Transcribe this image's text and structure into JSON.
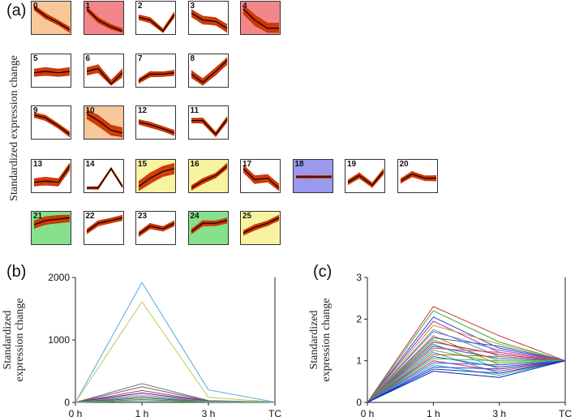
{
  "figure": {
    "panel_a_label": "(a)",
    "panel_b_label": "(b)",
    "panel_c_label": "(c)",
    "panel_a_ylabel": "Standardized expression change"
  },
  "colors": {
    "trace": "#cc3300",
    "centroid": "#000000",
    "orange": "#f8c79a",
    "red": "#f2868a",
    "yellow": "#f7f3a0",
    "green": "#86e08c",
    "blue": "#9999ee"
  },
  "chart_data": [
    {
      "id": "a",
      "type": "line",
      "title": "",
      "ylabel": "Standardized expression change",
      "clusters": [
        {
          "id": "0",
          "highlight": "orange",
          "profile": [
            0.1,
            0.4,
            0.65,
            0.9
          ],
          "spread": 0.1
        },
        {
          "id": "1",
          "highlight": "red",
          "profile": [
            0.15,
            0.55,
            0.8,
            0.95
          ],
          "spread": 0.1
        },
        {
          "id": "2",
          "highlight": "none",
          "profile": [
            0.45,
            0.55,
            0.95,
            0.35
          ],
          "spread": 0.1
        },
        {
          "id": "3",
          "highlight": "none",
          "profile": [
            0.3,
            0.55,
            0.6,
            0.85
          ],
          "spread": 0.15
        },
        {
          "id": "4",
          "highlight": "red",
          "profile": [
            0.15,
            0.55,
            0.85,
            0.85
          ],
          "spread": 0.2
        },
        {
          "id": "5",
          "highlight": "none",
          "profile": [
            0.55,
            0.5,
            0.55,
            0.5
          ],
          "spread": 0.15
        },
        {
          "id": "6",
          "highlight": "none",
          "profile": [
            0.5,
            0.4,
            0.95,
            0.55
          ],
          "spread": 0.15
        },
        {
          "id": "7",
          "highlight": "none",
          "profile": [
            0.85,
            0.6,
            0.6,
            0.55
          ],
          "spread": 0.1
        },
        {
          "id": "8",
          "highlight": "none",
          "profile": [
            0.6,
            0.9,
            0.5,
            0.1
          ],
          "spread": 0.15
        },
        {
          "id": "9",
          "highlight": "none",
          "profile": [
            0.2,
            0.3,
            0.6,
            0.9
          ],
          "spread": 0.1
        },
        {
          "id": "10",
          "highlight": "orange",
          "profile": [
            0.15,
            0.4,
            0.75,
            0.85
          ],
          "spread": 0.2
        },
        {
          "id": "12",
          "highlight": "none",
          "profile": [
            0.45,
            0.55,
            0.7,
            0.85
          ],
          "spread": 0.1
        },
        {
          "id": "11",
          "highlight": "none",
          "profile": [
            0.4,
            0.4,
            0.9,
            0.35
          ],
          "spread": 0.1
        },
        {
          "id": "13",
          "highlight": "none",
          "profile": [
            0.7,
            0.65,
            0.7,
            0.1
          ],
          "spread": 0.15
        },
        {
          "id": "14",
          "highlight": "none",
          "profile": [
            0.9,
            0.9,
            0.2,
            0.85
          ],
          "spread": 0.05
        },
        {
          "id": "15",
          "highlight": "yellow",
          "profile": [
            0.85,
            0.55,
            0.3,
            0.2
          ],
          "spread": 0.2
        },
        {
          "id": "16",
          "highlight": "yellow",
          "profile": [
            0.9,
            0.65,
            0.45,
            0.1
          ],
          "spread": 0.1
        },
        {
          "id": "17",
          "highlight": "none",
          "profile": [
            0.2,
            0.6,
            0.55,
            0.9
          ],
          "spread": 0.15
        },
        {
          "id": "18",
          "highlight": "blue",
          "profile": [
            0.5,
            0.5,
            0.5,
            0.5
          ],
          "spread": 0.05
        },
        {
          "id": "19",
          "highlight": "none",
          "profile": [
            0.7,
            0.45,
            0.8,
            0.3
          ],
          "spread": 0.1
        },
        {
          "id": "20",
          "highlight": "none",
          "profile": [
            0.65,
            0.4,
            0.55,
            0.55
          ],
          "spread": 0.1
        },
        {
          "id": "21",
          "highlight": "green",
          "profile": [
            0.35,
            0.2,
            0.15,
            0.1
          ],
          "spread": 0.15
        },
        {
          "id": "22",
          "highlight": "none",
          "profile": [
            0.6,
            0.3,
            0.2,
            0.1
          ],
          "spread": 0.1
        },
        {
          "id": "23",
          "highlight": "none",
          "profile": [
            0.7,
            0.4,
            0.5,
            0.3
          ],
          "spread": 0.1
        },
        {
          "id": "24",
          "highlight": "green",
          "profile": [
            0.6,
            0.3,
            0.3,
            0.2
          ],
          "spread": 0.1
        },
        {
          "id": "25",
          "highlight": "yellow",
          "profile": [
            0.65,
            0.45,
            0.3,
            0.1
          ],
          "spread": 0.1
        }
      ]
    },
    {
      "id": "b",
      "type": "line",
      "title": "",
      "xlabel": "",
      "ylabel": "Standardized\nexpression change",
      "ylabel_lines": [
        "Standardized",
        "expression change"
      ],
      "categories": [
        "0 h",
        "1 h",
        "3 h",
        "TC"
      ],
      "ylim": [
        0,
        2000
      ],
      "yticks": [
        "0",
        "1000",
        "2000"
      ],
      "series": [
        {
          "color": "#55aadd",
          "values": [
            0,
            1920,
            200,
            5
          ]
        },
        {
          "color": "#bbcc55",
          "values": [
            0,
            1610,
            80,
            5
          ]
        },
        {
          "color": "#777777",
          "values": [
            0,
            300,
            30,
            5
          ]
        },
        {
          "color": "#666666",
          "values": [
            0,
            250,
            25,
            5
          ]
        },
        {
          "color": "#aa3377",
          "values": [
            0,
            190,
            20,
            5
          ]
        },
        {
          "color": "#442266",
          "values": [
            0,
            150,
            15,
            5
          ]
        },
        {
          "color": "#cc88cc",
          "values": [
            0,
            120,
            15,
            5
          ]
        },
        {
          "color": "#3377aa",
          "values": [
            0,
            95,
            10,
            5
          ]
        },
        {
          "color": "#228833",
          "values": [
            0,
            70,
            10,
            5
          ]
        },
        {
          "color": "#886644",
          "values": [
            0,
            45,
            8,
            5
          ]
        },
        {
          "color": "#55bb99",
          "values": [
            0,
            25,
            6,
            5
          ]
        }
      ]
    },
    {
      "id": "c",
      "type": "line",
      "title": "",
      "xlabel": "",
      "ylabel": "Standardized\nexpression change",
      "ylabel_lines": [
        "Standardized",
        "expression change"
      ],
      "categories": [
        "0 h",
        "1 h",
        "3 h",
        "TC"
      ],
      "ylim": [
        0,
        3
      ],
      "yticks": [
        "0",
        "1",
        "2",
        "3"
      ],
      "series_summary": "many overlapping series; 0 h = 0, 1 h spans 0.75–2.3, 3 h spans 0.6–1.6, TC = 1",
      "series": [
        {
          "color": "#cc3333",
          "values": [
            0,
            2.3,
            1.6,
            1
          ]
        },
        {
          "color": "#33aa33",
          "values": [
            0,
            2.2,
            1.45,
            1
          ]
        },
        {
          "color": "#3344cc",
          "values": [
            0,
            2.05,
            1.3,
            1
          ]
        },
        {
          "color": "#aa33aa",
          "values": [
            0,
            1.95,
            1.2,
            1
          ]
        },
        {
          "color": "#cc9933",
          "values": [
            0,
            1.85,
            1.4,
            1
          ]
        },
        {
          "color": "#33aaaa",
          "values": [
            0,
            1.75,
            1.1,
            1
          ]
        },
        {
          "color": "#8855cc",
          "values": [
            0,
            1.7,
            1.25,
            1
          ]
        },
        {
          "color": "#dd6622",
          "values": [
            0,
            1.6,
            0.9,
            1
          ]
        },
        {
          "color": "#2266aa",
          "values": [
            0,
            1.55,
            1.35,
            1
          ]
        },
        {
          "color": "#66bb33",
          "values": [
            0,
            1.5,
            1.0,
            1
          ]
        },
        {
          "color": "#bb2266",
          "values": [
            0,
            1.45,
            1.15,
            1
          ]
        },
        {
          "color": "#22aa77",
          "values": [
            0,
            1.4,
            0.8,
            1
          ]
        },
        {
          "color": "#4455dd",
          "values": [
            0,
            1.35,
            1.05,
            1
          ]
        },
        {
          "color": "#cc5588",
          "values": [
            0,
            1.3,
            1.2,
            1
          ]
        },
        {
          "color": "#77aa22",
          "values": [
            0,
            1.25,
            0.95,
            1
          ]
        },
        {
          "color": "#2299cc",
          "values": [
            0,
            1.2,
            0.7,
            1
          ]
        },
        {
          "color": "#aa6622",
          "values": [
            0,
            1.15,
            1.1,
            1
          ]
        },
        {
          "color": "#5533bb",
          "values": [
            0,
            1.1,
            0.85,
            1
          ]
        },
        {
          "color": "#33cc66",
          "values": [
            0,
            1.05,
            1.0,
            1
          ]
        },
        {
          "color": "#dd3355",
          "values": [
            0,
            1.0,
            0.75,
            1
          ]
        },
        {
          "color": "#3366ee",
          "values": [
            0,
            0.95,
            0.9,
            1
          ]
        },
        {
          "color": "#22bbaa",
          "values": [
            0,
            0.9,
            0.65,
            1
          ]
        },
        {
          "color": "#2244dd",
          "values": [
            0,
            0.85,
            0.8,
            1
          ]
        },
        {
          "color": "#1133bb",
          "values": [
            0,
            0.8,
            0.7,
            1
          ]
        },
        {
          "color": "#0022aa",
          "values": [
            0,
            0.75,
            0.6,
            1
          ]
        }
      ]
    }
  ]
}
